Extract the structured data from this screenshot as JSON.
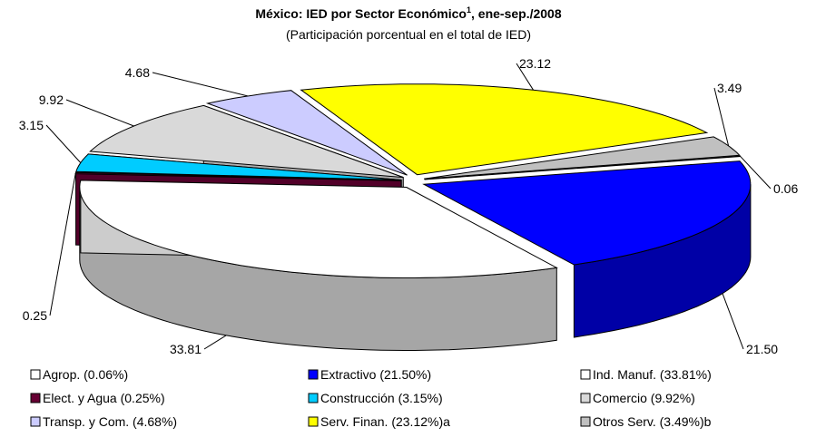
{
  "chart_data": {
    "type": "pie3d",
    "title": "México: IED por Sector Económico",
    "title_superscript": "1",
    "title_suffix": ", ene-sep./2008",
    "subtitle": "(Participación porcentual en el total de IED)",
    "categories": [
      "Agrop. (0.06%)",
      "Extractivo (21.50%)",
      "Ind. Manuf. (33.81%)",
      "Elect. y Agua (0.25%)",
      "Construcción (3.15%)",
      "Comercio (9.92%)",
      "Transp. y Com. (4.68%)",
      "Serv. Finan. (23.12%)a",
      "Otros Serv. (3.49%)b"
    ],
    "values": [
      0.06,
      21.5,
      33.81,
      0.25,
      3.15,
      9.92,
      4.68,
      23.12,
      3.49
    ],
    "value_labels": [
      "0.06",
      "21.50",
      "33.81",
      "0.25",
      "3.15",
      "9.92",
      "4.68",
      "23.12",
      "3.49"
    ],
    "colors": [
      "#ffffff",
      "#0000ff",
      "#ffffff",
      "#660033",
      "#00ccff",
      "#d9d9d9",
      "#ccccff",
      "#ffff00",
      "#c0c0c0"
    ]
  }
}
